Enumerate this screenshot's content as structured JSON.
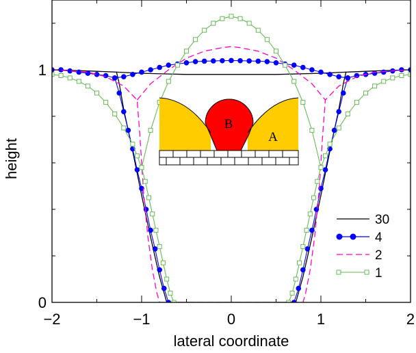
{
  "chart_data": {
    "type": "line",
    "title": "",
    "xlabel": "lateral coordinate",
    "ylabel": "height",
    "xlim": [
      -2,
      2
    ],
    "ylim": [
      0,
      1.3
    ],
    "x_ticks": [
      -2,
      -1,
      0,
      1,
      2
    ],
    "x_tick_labels": [
      "−2",
      "−1",
      "0",
      "1",
      "2"
    ],
    "y_ticks": [
      0,
      1
    ],
    "y_tick_labels": [
      "0",
      "1"
    ],
    "grid": false,
    "legend_position": "bottom-right",
    "series": [
      {
        "name": "30",
        "color": "#000000",
        "style": "solid",
        "marker": "none",
        "x": [
          -2.0,
          -1.6,
          -1.28,
          -1.25,
          -1.2,
          -1.1,
          -1.0,
          -0.9,
          -0.8,
          -0.72,
          0.72,
          0.8,
          0.9,
          1.0,
          1.1,
          1.2,
          1.25,
          1.28,
          1.6,
          2.0
        ],
        "y": [
          1.0,
          0.995,
          0.99,
          0.94,
          0.83,
          0.65,
          0.46,
          0.28,
          0.11,
          0.0,
          0.0,
          0.11,
          0.28,
          0.46,
          0.65,
          0.83,
          0.94,
          0.99,
          0.995,
          1.0
        ],
        "x2": [
          -1.28,
          -1.0,
          -0.5,
          0.0,
          0.5,
          1.0,
          1.28
        ],
        "y2": [
          0.99,
          0.985,
          0.98,
          0.98,
          0.98,
          0.985,
          0.99
        ]
      },
      {
        "name": "4",
        "color": "#0000ff",
        "style": "solid",
        "marker": "filled-circle",
        "x": [
          -2.0,
          -1.9,
          -1.8,
          -1.7,
          -1.6,
          -1.5,
          -1.4,
          -1.3,
          -1.25,
          -1.2,
          -1.15,
          -1.1,
          -1.05,
          -1.0,
          -0.95,
          -0.9,
          -0.85,
          -0.8,
          -0.75,
          -0.7,
          0.7,
          0.75,
          0.8,
          0.85,
          0.9,
          0.95,
          1.0,
          1.05,
          1.1,
          1.15,
          1.2,
          1.25,
          1.3,
          1.4,
          1.5,
          1.6,
          1.7,
          1.8,
          1.9,
          2.0
        ],
        "y": [
          1.0,
          1.0,
          0.995,
          0.99,
          0.985,
          0.98,
          0.975,
          0.965,
          0.9,
          0.82,
          0.74,
          0.66,
          0.57,
          0.49,
          0.4,
          0.31,
          0.23,
          0.14,
          0.06,
          0.0,
          0.0,
          0.06,
          0.14,
          0.23,
          0.31,
          0.4,
          0.49,
          0.57,
          0.66,
          0.74,
          0.82,
          0.9,
          0.965,
          0.975,
          0.98,
          0.985,
          0.99,
          0.995,
          1.0,
          1.0
        ],
        "x2": [
          -1.3,
          -1.2,
          -1.1,
          -1.0,
          -0.9,
          -0.8,
          -0.7,
          -0.6,
          -0.5,
          -0.4,
          -0.3,
          -0.2,
          -0.1,
          0.0,
          0.1,
          0.2,
          0.3,
          0.4,
          0.5,
          0.6,
          0.7,
          0.8,
          0.9,
          1.0,
          1.1,
          1.2,
          1.3
        ],
        "y2": [
          0.965,
          0.97,
          0.98,
          0.99,
          1.0,
          1.01,
          1.02,
          1.025,
          1.03,
          1.035,
          1.037,
          1.038,
          1.039,
          1.04,
          1.039,
          1.038,
          1.037,
          1.035,
          1.03,
          1.025,
          1.02,
          1.01,
          1.0,
          0.99,
          0.98,
          0.97,
          0.965
        ]
      },
      {
        "name": "2",
        "color": "#ff00cc",
        "style": "dashed",
        "marker": "none",
        "x": [
          -2.0,
          -1.6,
          -1.4,
          -1.2,
          -1.05,
          -1.02,
          -0.98,
          -0.93,
          -0.88,
          -0.83,
          -0.8,
          0.8,
          0.83,
          0.88,
          0.93,
          0.98,
          1.02,
          1.05,
          1.2,
          1.4,
          1.6,
          2.0
        ],
        "y": [
          1.0,
          0.99,
          0.97,
          0.93,
          0.87,
          0.72,
          0.48,
          0.28,
          0.14,
          0.04,
          0.0,
          0.0,
          0.04,
          0.14,
          0.28,
          0.48,
          0.72,
          0.87,
          0.93,
          0.97,
          0.99,
          1.0
        ],
        "x2": [
          -1.05,
          -0.9,
          -0.7,
          -0.5,
          -0.3,
          -0.1,
          0.0,
          0.1,
          0.3,
          0.5,
          0.7,
          0.9,
          1.05
        ],
        "y2": [
          0.87,
          0.94,
          1.0,
          1.05,
          1.08,
          1.095,
          1.1,
          1.095,
          1.08,
          1.05,
          1.0,
          0.94,
          0.87
        ]
      },
      {
        "name": "1",
        "color": "#66bb55",
        "style": "solid",
        "marker": "open-square",
        "x": [
          -2.0,
          -1.9,
          -1.8,
          -1.7,
          -1.6,
          -1.5,
          -1.4,
          -1.3,
          -1.2,
          -1.1,
          -1.05,
          -1.0,
          -0.96,
          -0.92,
          -0.88,
          -0.84,
          -0.8,
          -0.76,
          -0.72,
          -0.68,
          -0.64,
          0.64,
          0.68,
          0.72,
          0.76,
          0.8,
          0.84,
          0.88,
          0.92,
          0.96,
          1.0,
          1.05,
          1.1,
          1.2,
          1.3,
          1.4,
          1.5,
          1.6,
          1.7,
          1.8,
          1.9,
          2.0
        ],
        "y": [
          0.98,
          0.975,
          0.965,
          0.95,
          0.93,
          0.9,
          0.86,
          0.81,
          0.75,
          0.68,
          0.63,
          0.58,
          0.52,
          0.45,
          0.38,
          0.31,
          0.24,
          0.17,
          0.1,
          0.04,
          0.0,
          0.0,
          0.04,
          0.1,
          0.17,
          0.24,
          0.31,
          0.38,
          0.45,
          0.52,
          0.58,
          0.63,
          0.68,
          0.75,
          0.81,
          0.86,
          0.9,
          0.93,
          0.95,
          0.965,
          0.975,
          0.98
        ],
        "x2": [
          -1.0,
          -0.9,
          -0.8,
          -0.7,
          -0.6,
          -0.5,
          -0.4,
          -0.3,
          -0.2,
          -0.1,
          0.0,
          0.1,
          0.2,
          0.3,
          0.4,
          0.5,
          0.6,
          0.7,
          0.8,
          0.9,
          1.0
        ],
        "y2": [
          0.58,
          0.74,
          0.86,
          0.95,
          1.02,
          1.08,
          1.13,
          1.17,
          1.2,
          1.22,
          1.23,
          1.22,
          1.2,
          1.17,
          1.13,
          1.08,
          1.02,
          0.95,
          0.86,
          0.74,
          0.58
        ]
      }
    ],
    "inset": {
      "labels": [
        "A",
        "B"
      ],
      "colors": {
        "A": "#ffcc00",
        "B": "#ff0000"
      }
    }
  }
}
